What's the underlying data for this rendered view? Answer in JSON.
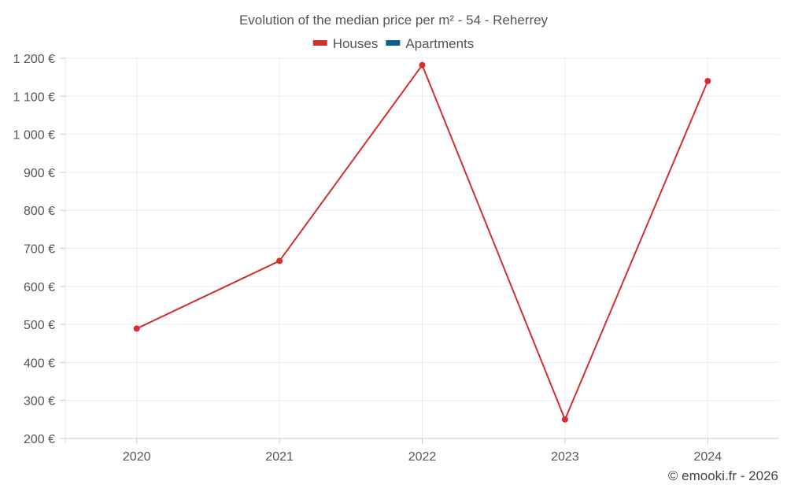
{
  "chart_data": {
    "type": "line",
    "title": "Evolution of the median price per m² - 54 - Reherrey",
    "categories": [
      "2020",
      "2021",
      "2022",
      "2023",
      "2024"
    ],
    "series": [
      {
        "name": "Houses",
        "color": "#d32f2f",
        "values": [
          489,
          667,
          1182,
          250,
          1140
        ]
      },
      {
        "name": "Apartments",
        "color": "#0b5f8f",
        "values": [
          null,
          null,
          null,
          null,
          null
        ]
      }
    ],
    "ylim": [
      200,
      1200
    ],
    "yticks": [
      200,
      300,
      400,
      500,
      600,
      700,
      800,
      900,
      1000,
      1100,
      1200
    ],
    "ytick_labels": [
      "200 €",
      "300 €",
      "400 €",
      "500 €",
      "600 €",
      "700 €",
      "800 €",
      "900 €",
      "1 000 €",
      "1 100 €",
      "1 200 €"
    ],
    "xlabel": "",
    "ylabel": "",
    "grid": true,
    "legend_position": "top-center"
  },
  "credit": "© emooki.fr - 2026"
}
